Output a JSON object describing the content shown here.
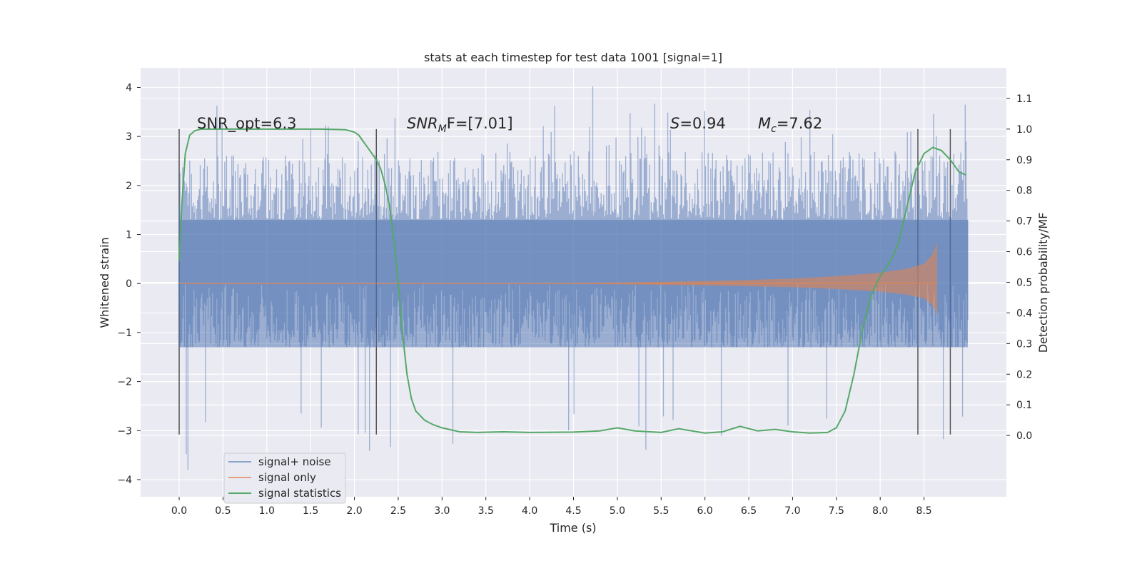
{
  "chart_data": {
    "type": "line",
    "title": "stats at each timestep for test data 1001 [signal=1]",
    "xlabel": "Time (s)",
    "ylabel_left": "Whitened strain",
    "ylabel_right": "Detection probability/MF",
    "xlim": [
      -0.44,
      9.44
    ],
    "ylim_left": [
      -4.35,
      4.4
    ],
    "ylim_right": [
      -0.2,
      1.2
    ],
    "x_ticks": [
      "0.0",
      "0.5",
      "1.0",
      "1.5",
      "2.0",
      "2.5",
      "3.0",
      "3.5",
      "4.0",
      "4.5",
      "5.0",
      "5.5",
      "6.0",
      "6.5",
      "7.0",
      "7.5",
      "8.0",
      "8.5"
    ],
    "y_ticks_left": [
      "4",
      "3",
      "2",
      "1",
      "0",
      "−1",
      "−2",
      "−3",
      "−4"
    ],
    "y_ticks_right": [
      "1.1",
      "1.0",
      "0.9",
      "0.8",
      "0.7",
      "0.6",
      "0.5",
      "0.4",
      "0.3",
      "0.2",
      "0.1",
      "0.0"
    ],
    "grid": true,
    "legend_position": "lower-left",
    "colors": {
      "background": "#eaeaf2",
      "noise": "#4c72b0",
      "signal": "#dd8452",
      "stats": "#55a868",
      "vline": "#555555",
      "grid": "#ffffff"
    },
    "annotations": {
      "snr_opt": "SNR_opt=6.3",
      "snr_mf_base": "SNR",
      "snr_mf_sub": "M",
      "snr_mf_tail": "F=[7.01]",
      "s_sym": "S",
      "s_val": "=0.94",
      "mc_sym": "M",
      "mc_sub": "c",
      "mc_val": "=7.62"
    },
    "vertical_lines": [
      0.0,
      2.25,
      8.43,
      8.8
    ],
    "vertical_line_range": [
      -3.08,
      3.15
    ],
    "series": [
      {
        "name": "signal+ noise",
        "type": "noise-band",
        "x_range": [
          0.0,
          9.0
        ],
        "core_band": [
          -1.3,
          1.3
        ],
        "typical_envelope": [
          -2.6,
          2.7
        ],
        "max_peak": 4.02,
        "min_peak": -3.8
      },
      {
        "name": "signal only",
        "type": "chirp",
        "x_start": 0.0,
        "x_end": 8.65,
        "amplitude": [
          [
            0.0,
            0.0
          ],
          [
            4.0,
            0.0
          ],
          [
            5.0,
            0.02
          ],
          [
            6.0,
            0.05
          ],
          [
            7.0,
            0.1
          ],
          [
            7.5,
            0.15
          ],
          [
            8.0,
            0.22
          ],
          [
            8.3,
            0.3
          ],
          [
            8.5,
            0.4
          ],
          [
            8.6,
            0.6
          ],
          [
            8.65,
            0.85
          ]
        ]
      },
      {
        "name": "signal statistics",
        "type": "line",
        "axis": "right",
        "x": [
          0.0,
          0.03,
          0.07,
          0.12,
          0.18,
          0.25,
          0.4,
          0.8,
          1.2,
          1.6,
          1.9,
          2.0,
          2.05,
          2.1,
          2.15,
          2.2,
          2.25,
          2.3,
          2.35,
          2.4,
          2.45,
          2.5,
          2.55,
          2.6,
          2.65,
          2.7,
          2.8,
          2.9,
          3.0,
          3.2,
          3.4,
          3.7,
          4.0,
          4.5,
          4.8,
          5.0,
          5.2,
          5.5,
          5.7,
          6.0,
          6.2,
          6.4,
          6.6,
          6.8,
          7.0,
          7.2,
          7.4,
          7.5,
          7.6,
          7.7,
          7.8,
          7.9,
          8.0,
          8.1,
          8.2,
          8.3,
          8.4,
          8.5,
          8.6,
          8.7,
          8.8,
          8.9,
          8.98
        ],
        "y": [
          0.57,
          0.75,
          0.92,
          0.98,
          0.995,
          1.0,
          1.0,
          1.0,
          1.0,
          1.0,
          0.998,
          0.99,
          0.98,
          0.96,
          0.94,
          0.92,
          0.9,
          0.87,
          0.82,
          0.75,
          0.64,
          0.5,
          0.33,
          0.2,
          0.12,
          0.08,
          0.05,
          0.035,
          0.025,
          0.012,
          0.01,
          0.012,
          0.01,
          0.011,
          0.015,
          0.025,
          0.015,
          0.01,
          0.022,
          0.008,
          0.012,
          0.03,
          0.015,
          0.02,
          0.012,
          0.008,
          0.01,
          0.025,
          0.08,
          0.2,
          0.35,
          0.46,
          0.52,
          0.56,
          0.62,
          0.74,
          0.86,
          0.92,
          0.94,
          0.93,
          0.9,
          0.86,
          0.85
        ]
      }
    ]
  }
}
